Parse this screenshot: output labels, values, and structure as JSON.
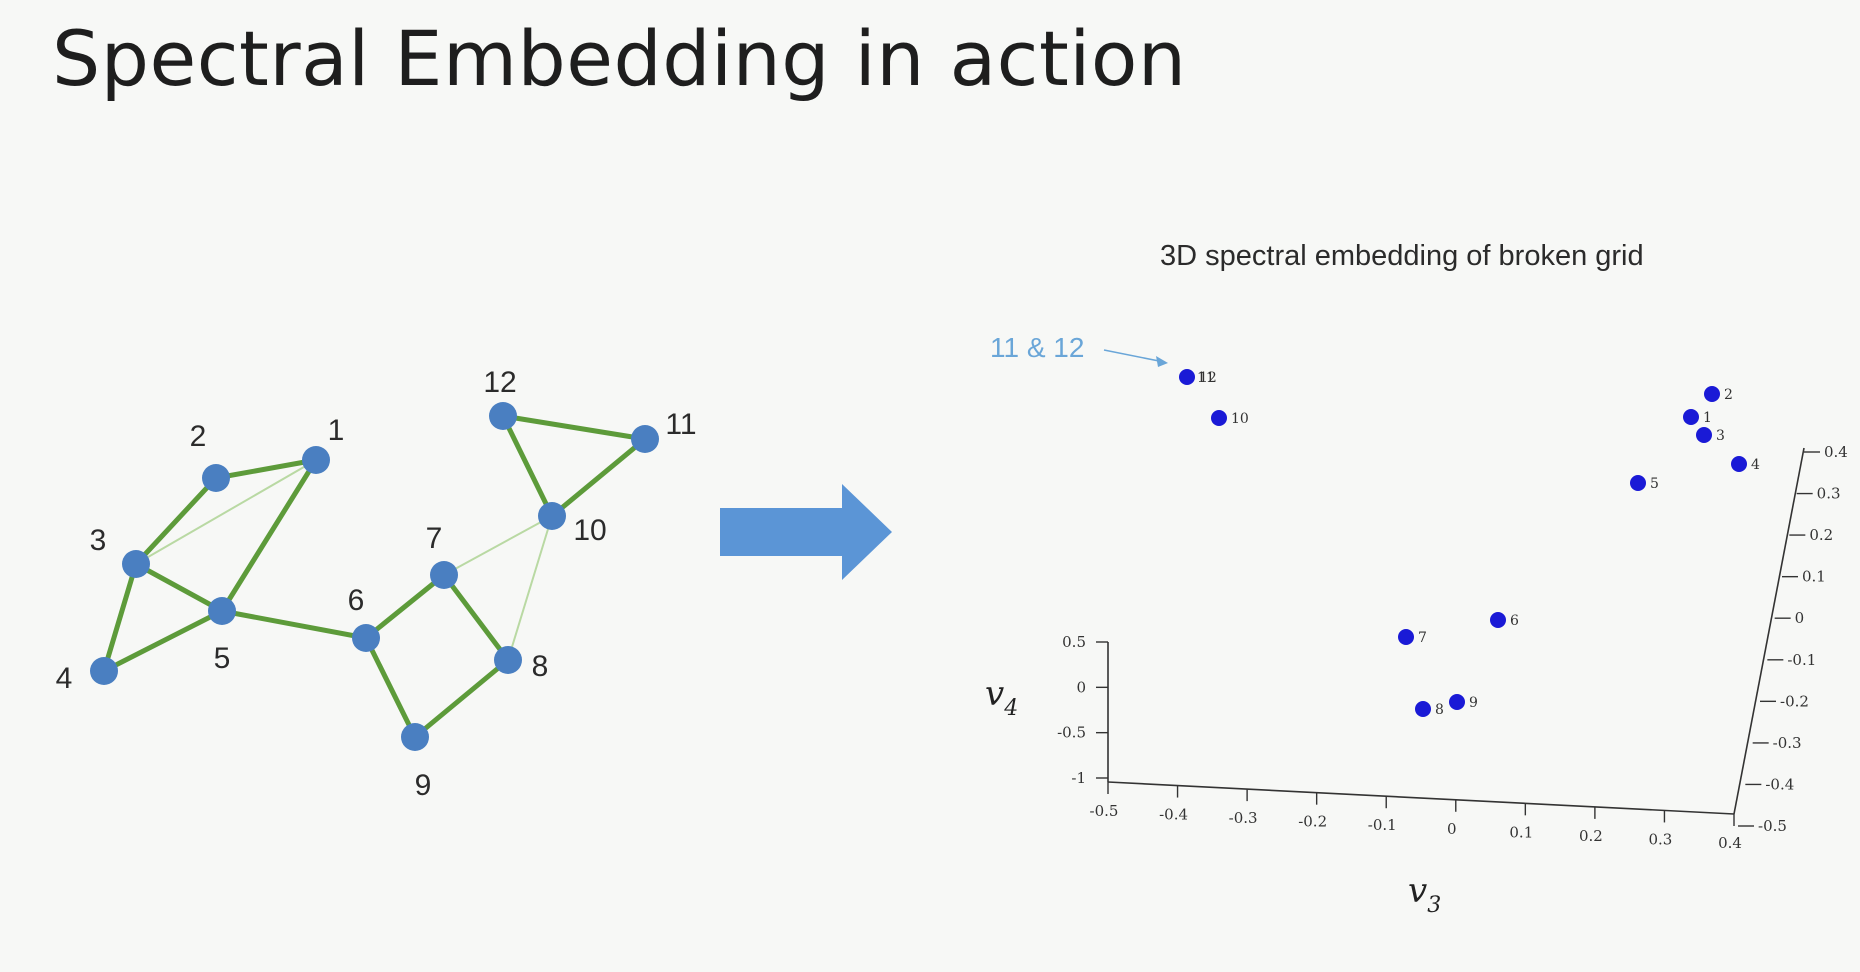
{
  "slide": {
    "title": "Spectral Embedding in action"
  },
  "graph": {
    "node_color": "#4a7fc1",
    "strong_edge_color": "#5d9b3a",
    "weak_edge_color": "#b9d9a3",
    "nodes": [
      {
        "id": "1",
        "label": "1"
      },
      {
        "id": "2",
        "label": "2"
      },
      {
        "id": "3",
        "label": "3"
      },
      {
        "id": "4",
        "label": "4"
      },
      {
        "id": "5",
        "label": "5"
      },
      {
        "id": "6",
        "label": "6"
      },
      {
        "id": "7",
        "label": "7"
      },
      {
        "id": "8",
        "label": "8"
      },
      {
        "id": "9",
        "label": "9"
      },
      {
        "id": "10",
        "label": "10"
      },
      {
        "id": "11",
        "label": "11"
      },
      {
        "id": "12",
        "label": "12"
      }
    ],
    "edges": [
      {
        "from": "2",
        "to": "1",
        "weight": "strong"
      },
      {
        "from": "2",
        "to": "3",
        "weight": "strong"
      },
      {
        "from": "1",
        "to": "5",
        "weight": "strong"
      },
      {
        "from": "3",
        "to": "4",
        "weight": "strong"
      },
      {
        "from": "3",
        "to": "5",
        "weight": "strong"
      },
      {
        "from": "4",
        "to": "5",
        "weight": "strong"
      },
      {
        "from": "5",
        "to": "6",
        "weight": "strong"
      },
      {
        "from": "6",
        "to": "7",
        "weight": "strong"
      },
      {
        "from": "6",
        "to": "9",
        "weight": "strong"
      },
      {
        "from": "7",
        "to": "8",
        "weight": "strong"
      },
      {
        "from": "8",
        "to": "9",
        "weight": "strong"
      },
      {
        "from": "12",
        "to": "11",
        "weight": "strong"
      },
      {
        "from": "12",
        "to": "10",
        "weight": "strong"
      },
      {
        "from": "11",
        "to": "10",
        "weight": "strong"
      },
      {
        "from": "3",
        "to": "1",
        "weight": "weak"
      },
      {
        "from": "7",
        "to": "10",
        "weight": "weak"
      },
      {
        "from": "8",
        "to": "10",
        "weight": "weak"
      }
    ]
  },
  "arrow": {
    "color": "#5b95d6"
  },
  "embedding": {
    "title": "3D spectral embedding of broken grid",
    "annotation": "11 & 12",
    "annotation_color": "#6aa6d8",
    "point_color": "#1a1ad6",
    "points": [
      {
        "label": "12",
        "overlap_label": "11"
      },
      {
        "label": "10"
      },
      {
        "label": "2"
      },
      {
        "label": "1"
      },
      {
        "label": "3"
      },
      {
        "label": "4"
      },
      {
        "label": "5"
      },
      {
        "label": "6"
      },
      {
        "label": "7"
      },
      {
        "label": "8"
      },
      {
        "label": "9"
      }
    ],
    "x_axis": {
      "label": "v",
      "subscript": "3",
      "ticks": [
        "-0.5",
        "-0.4",
        "-0.3",
        "-0.2",
        "-0.1",
        "0",
        "0.1",
        "0.2",
        "0.3",
        "0.4"
      ]
    },
    "y_axis": {
      "label": "v",
      "subscript": "4",
      "ticks": [
        "0.5",
        "0",
        "-0.5",
        "-1"
      ]
    },
    "z_axis": {
      "ticks": [
        "0.4",
        "0.3",
        "0.2",
        "0.1",
        "0",
        "-0.1",
        "-0.2",
        "-0.3",
        "-0.4",
        "-0.5"
      ]
    }
  }
}
